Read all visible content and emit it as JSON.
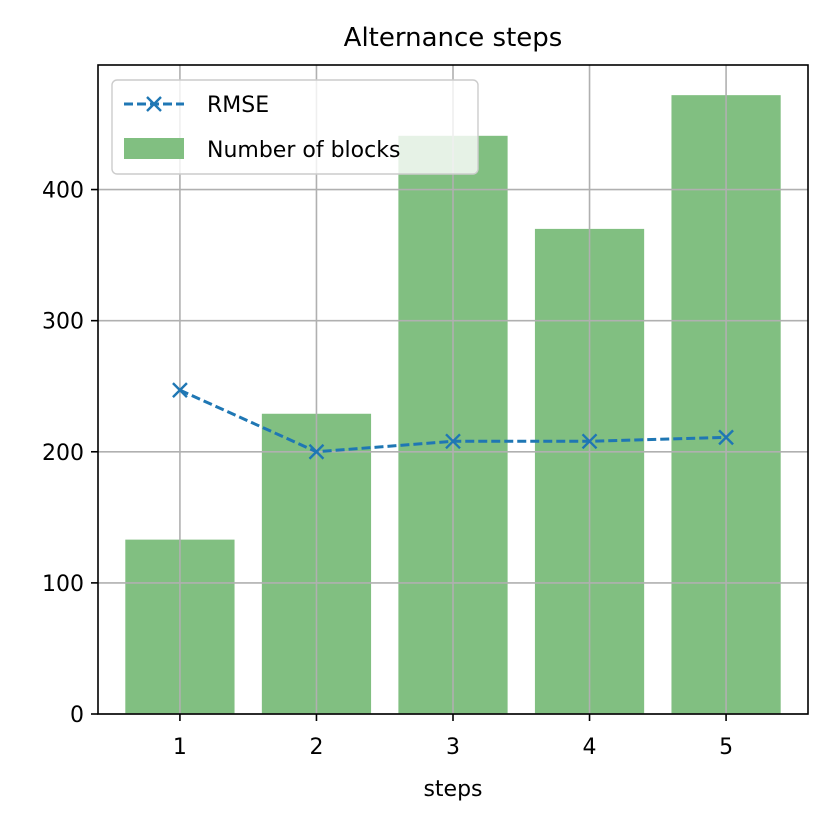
{
  "chart_data": {
    "type": "bar",
    "title": "Alternance steps",
    "xlabel": "steps",
    "ylabel": "",
    "categories": [
      "1",
      "2",
      "3",
      "4",
      "5"
    ],
    "x": [
      1,
      2,
      3,
      4,
      5
    ],
    "ylim": [
      0,
      495
    ],
    "yticks": [
      0,
      100,
      200,
      300,
      400
    ],
    "grid": true,
    "legend_position": "top-left",
    "series": [
      {
        "name": "RMSE",
        "kind": "line",
        "values": [
          247,
          200,
          208,
          208,
          211
        ],
        "color": "#1f77b4",
        "line_style": "dashed",
        "marker": "x"
      },
      {
        "name": "Number of blocks",
        "kind": "bar",
        "values": [
          133,
          229,
          441,
          370,
          472
        ],
        "color": "#81bf81"
      }
    ]
  }
}
